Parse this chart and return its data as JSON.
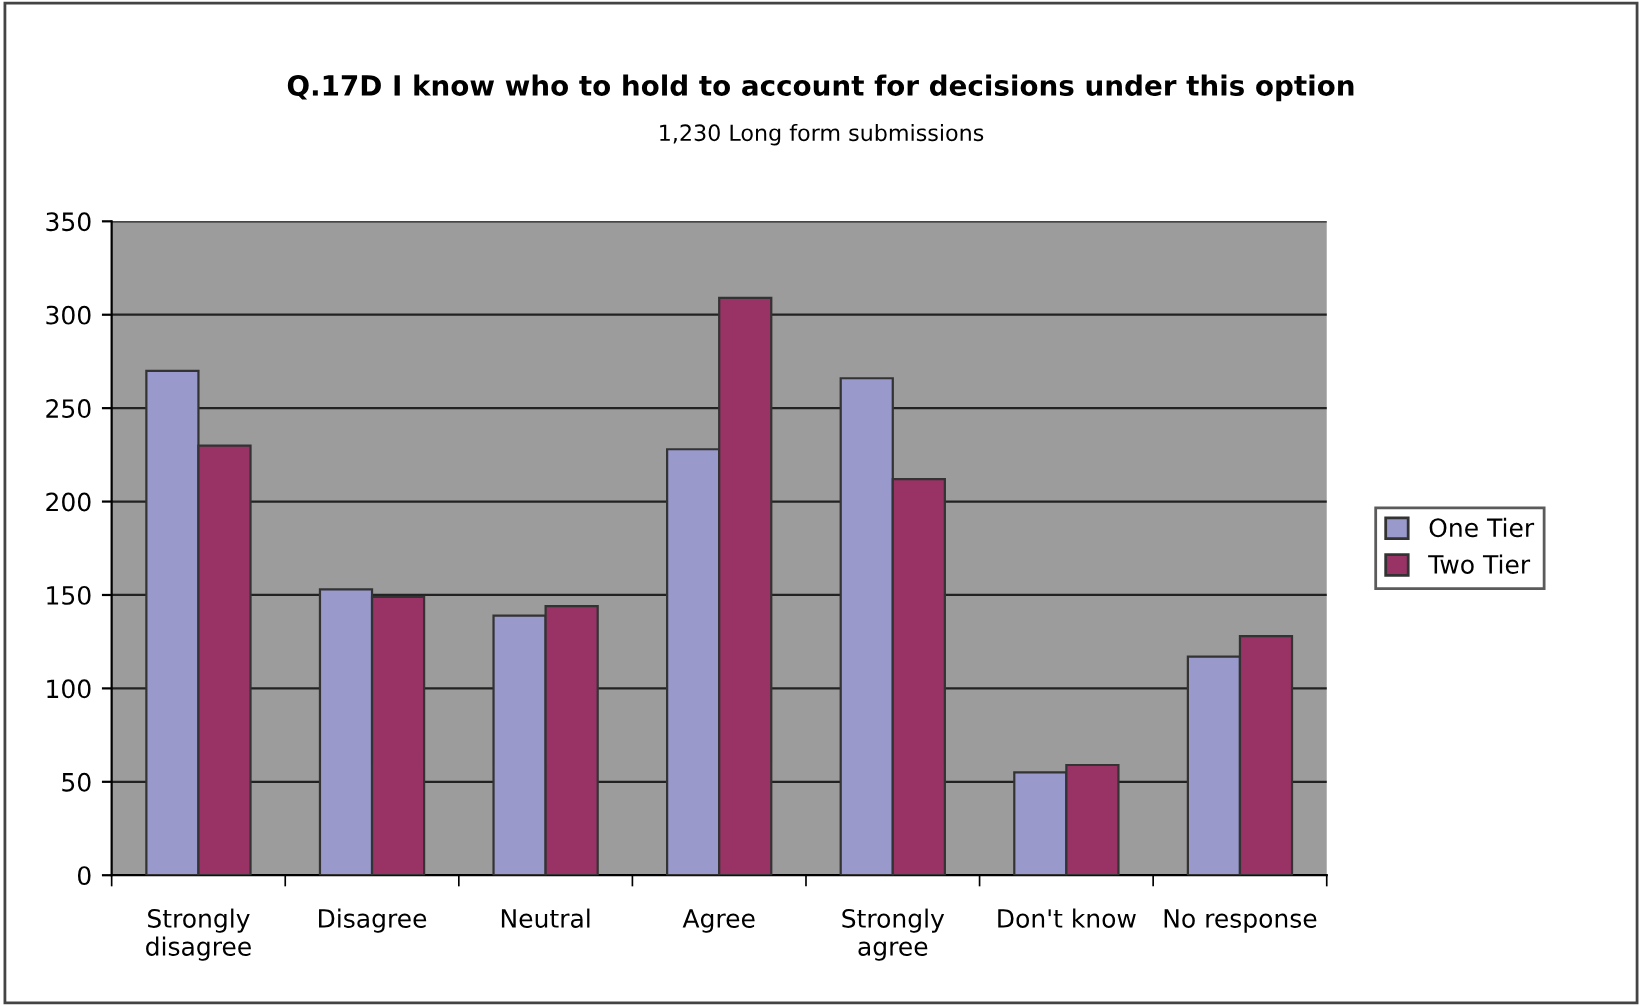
{
  "chart_data": {
    "type": "bar",
    "title": "Q.17D I know who to hold to account for decisions under this option",
    "subtitle": "1,230 Long form submissions",
    "categories": [
      "Strongly\ndisagree",
      "Disagree",
      "Neutral",
      "Agree",
      "Strongly\nagree",
      "Don't know",
      "No response"
    ],
    "series": [
      {
        "name": "One Tier",
        "color": "#9999cc",
        "values": [
          270,
          153,
          139,
          228,
          266,
          55,
          117
        ]
      },
      {
        "name": "Two Tier",
        "color": "#993366",
        "values": [
          230,
          149,
          144,
          309,
          212,
          59,
          128
        ]
      }
    ],
    "ylim": [
      0,
      350
    ],
    "yticks": [
      0,
      50,
      100,
      150,
      200,
      250,
      300,
      350
    ],
    "grid": "y",
    "legend": "right"
  }
}
